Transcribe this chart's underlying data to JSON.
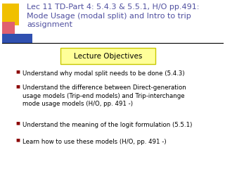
{
  "title": "Lec 11 TD-Part 4: 5.4.3 & 5.5.1, H/O pp.491:\nMode Usage (modal split) and Intro to trip\nassignment",
  "title_color": "#5050a0",
  "title_fontsize": 8.0,
  "section_label": "Lecture Objectives",
  "section_label_fontsize": 7.5,
  "section_box_color": "#ffff99",
  "section_box_edge": "#c8c800",
  "bullet_color": "#000000",
  "bullet_fontsize": 6.2,
  "bullets": [
    "Understand why modal split needs to be done (5.4.3)",
    "Understand the difference between Direct-generation\nusage models (Trip-end models) and Trip-interchange\nmode usage models (H/O, pp. 491 -)",
    "Understand the meaning of the logit formulation (5.5.1)",
    "Learn how to use these models (H/O, pp. 491 -)"
  ],
  "background_color": "#ffffff",
  "decor_yellow": "#f0c000",
  "decor_pink": "#e06070",
  "decor_blue": "#3050b0",
  "line_color": "#000000",
  "bullet_marker_color": "#8b0000"
}
